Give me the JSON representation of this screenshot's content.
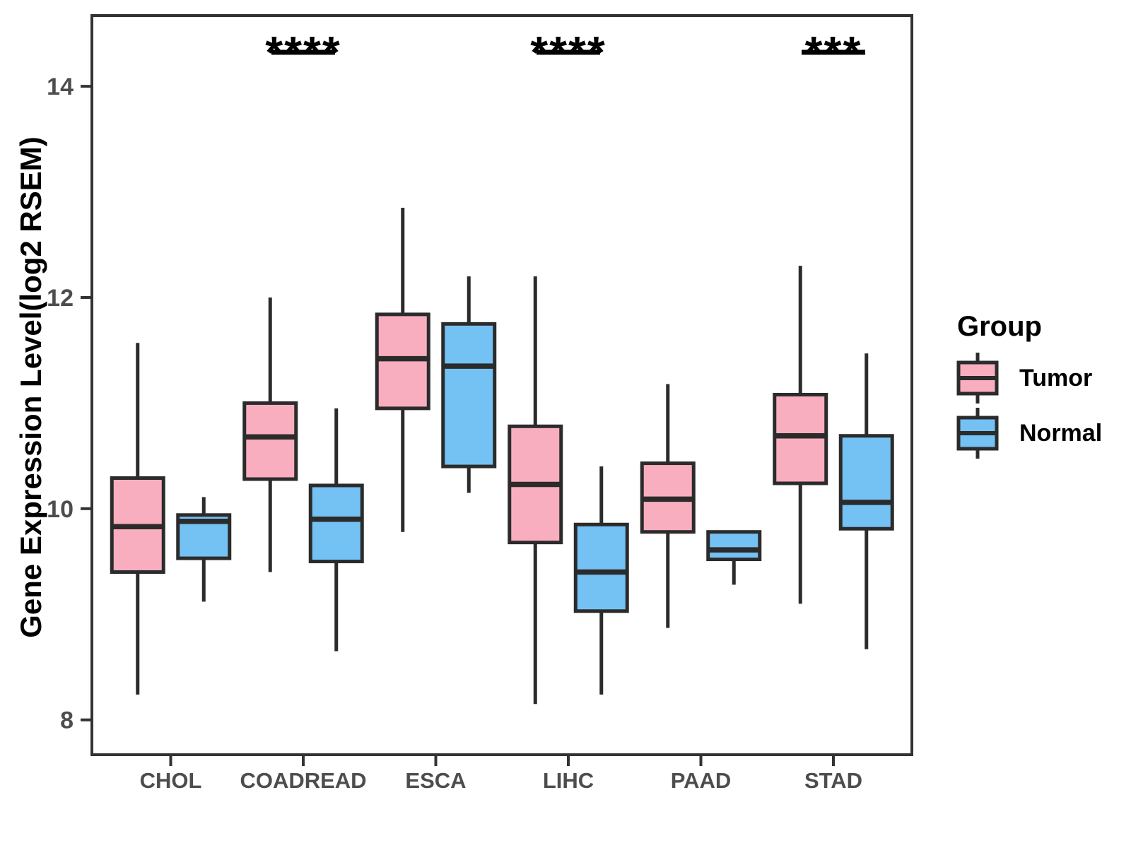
{
  "chart_data": {
    "type": "grouped_boxplot",
    "title": "",
    "ylabel": "Gene Expression Level(log2 RSEM)",
    "xlabel": "",
    "ylim": [
      7.67,
      14.67
    ],
    "y_ticks": [
      8,
      10,
      12,
      14
    ],
    "grid": false,
    "legend_title": "Group",
    "legend_position": "right",
    "groups": [
      "Tumor",
      "Normal"
    ],
    "colors": {
      "Tumor": "#F9AEBF",
      "Normal": "#74C1F4",
      "stroke": "#2B2B2B",
      "panel_border": "#333333",
      "tick_text": "#4D4D4D"
    },
    "categories": [
      "CHOL",
      "COADREAD",
      "ESCA",
      "LIHC",
      "PAAD",
      "STAD"
    ],
    "series": [
      {
        "name": "Tumor",
        "boxes": [
          {
            "category": "CHOL",
            "whisker_low": 8.24,
            "q1": 9.4,
            "median": 9.83,
            "q3": 10.29,
            "whisker_high": 11.57
          },
          {
            "category": "COADREAD",
            "whisker_low": 9.4,
            "q1": 10.28,
            "median": 10.68,
            "q3": 11.0,
            "whisker_high": 12.0
          },
          {
            "category": "ESCA",
            "whisker_low": 9.78,
            "q1": 10.95,
            "median": 11.42,
            "q3": 11.84,
            "whisker_high": 12.85
          },
          {
            "category": "LIHC",
            "whisker_low": 8.15,
            "q1": 9.68,
            "median": 10.23,
            "q3": 10.78,
            "whisker_high": 12.2
          },
          {
            "category": "PAAD",
            "whisker_low": 8.87,
            "q1": 9.78,
            "median": 10.09,
            "q3": 10.43,
            "whisker_high": 11.18
          },
          {
            "category": "STAD",
            "whisker_low": 9.1,
            "q1": 10.24,
            "median": 10.69,
            "q3": 11.08,
            "whisker_high": 12.3
          }
        ]
      },
      {
        "name": "Normal",
        "boxes": [
          {
            "category": "CHOL",
            "whisker_low": 9.12,
            "q1": 9.53,
            "median": 9.88,
            "q3": 9.94,
            "whisker_high": 10.11
          },
          {
            "category": "COADREAD",
            "whisker_low": 8.65,
            "q1": 9.5,
            "median": 9.9,
            "q3": 10.22,
            "whisker_high": 10.95
          },
          {
            "category": "ESCA",
            "whisker_low": 10.15,
            "q1": 10.4,
            "median": 11.35,
            "q3": 11.75,
            "whisker_high": 12.2
          },
          {
            "category": "LIHC",
            "whisker_low": 8.24,
            "q1": 9.03,
            "median": 9.4,
            "q3": 9.85,
            "whisker_high": 10.4
          },
          {
            "category": "PAAD",
            "whisker_low": 9.28,
            "q1": 9.52,
            "median": 9.61,
            "q3": 9.78,
            "whisker_high": 9.78
          },
          {
            "category": "STAD",
            "whisker_low": 8.67,
            "q1": 9.81,
            "median": 10.06,
            "q3": 10.69,
            "whisker_high": 11.47
          }
        ]
      }
    ],
    "significance": [
      {
        "category": "COADREAD",
        "label": "****"
      },
      {
        "category": "LIHC",
        "label": "****"
      },
      {
        "category": "STAD",
        "label": "***"
      }
    ]
  }
}
